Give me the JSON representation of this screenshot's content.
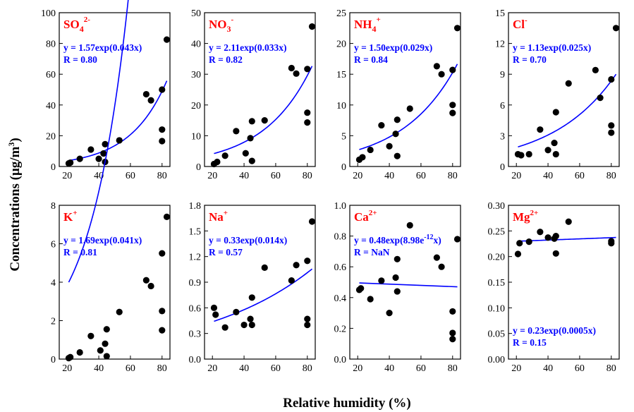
{
  "figure": {
    "xlabel": "Relative humidity (%)",
    "ylabel_base": "Concentrations (μg/m",
    "ylabel_sup": "3",
    "ylabel_end": ")"
  },
  "colors": {
    "ion": "#ff0000",
    "fit": "#0000ff",
    "points": "#000000"
  },
  "chart_data": [
    {
      "type": "scatter",
      "ion": {
        "base": "SO",
        "sub": "4",
        "sup": "2-"
      },
      "equation": "y = 1.57exp(0.043x)",
      "r_text": "R = 0.80",
      "fit": {
        "a": 1.57,
        "b": 0.043
      },
      "xlim": [
        15,
        85
      ],
      "xticks": [
        20,
        40,
        60,
        80
      ],
      "ylim": [
        0,
        100
      ],
      "yticks": [
        "0",
        "20",
        "40",
        "60",
        "80",
        "100"
      ],
      "points": [
        [
          21,
          2
        ],
        [
          22,
          2.5
        ],
        [
          28,
          5
        ],
        [
          35,
          11
        ],
        [
          40,
          5
        ],
        [
          43,
          8.5
        ],
        [
          44,
          3
        ],
        [
          44,
          14.5
        ],
        [
          53,
          17
        ],
        [
          70,
          47
        ],
        [
          73,
          43
        ],
        [
          80,
          50
        ],
        [
          80,
          24
        ],
        [
          80,
          16.5
        ],
        [
          83,
          82.5
        ]
      ]
    },
    {
      "type": "scatter",
      "ion": {
        "base": "NO",
        "sub": "3",
        "sup": "-"
      },
      "equation": "y = 2.11exp(0.033x)",
      "r_text": "R = 0.82",
      "fit": {
        "a": 2.11,
        "b": 0.033
      },
      "xlim": [
        15,
        85
      ],
      "xticks": [
        20,
        40,
        60,
        80
      ],
      "ylim": [
        0,
        50
      ],
      "yticks": [
        "0",
        "10",
        "20",
        "30",
        "40",
        "50"
      ],
      "points": [
        [
          21,
          0.8
        ],
        [
          23,
          1.5
        ],
        [
          28,
          3.5
        ],
        [
          35,
          11.5
        ],
        [
          41,
          4.3
        ],
        [
          44,
          9.2
        ],
        [
          45,
          1.8
        ],
        [
          45,
          14.7
        ],
        [
          53,
          15
        ],
        [
          70,
          32
        ],
        [
          73,
          30.2
        ],
        [
          80,
          31.7
        ],
        [
          80,
          17.5
        ],
        [
          80,
          14.3
        ],
        [
          83,
          45.5
        ]
      ]
    },
    {
      "type": "scatter",
      "ion": {
        "base": "NH",
        "sub": "4",
        "sup": "+"
      },
      "equation": "y = 1.50exp(0.029x)",
      "r_text": "R = 0.84",
      "fit": {
        "a": 1.5,
        "b": 0.029
      },
      "xlim": [
        15,
        85
      ],
      "xticks": [
        20,
        40,
        60,
        80
      ],
      "ylim": [
        0,
        25
      ],
      "yticks": [
        "0",
        "5",
        "10",
        "15",
        "20",
        "25"
      ],
      "points": [
        [
          21,
          1.1
        ],
        [
          23,
          1.5
        ],
        [
          28,
          2.7
        ],
        [
          35,
          6.7
        ],
        [
          40,
          3.3
        ],
        [
          44,
          5.3
        ],
        [
          45,
          1.7
        ],
        [
          45,
          7.6
        ],
        [
          53,
          9.4
        ],
        [
          70,
          16.3
        ],
        [
          73,
          15
        ],
        [
          80,
          15.7
        ],
        [
          80,
          10
        ],
        [
          80,
          8.7
        ],
        [
          83,
          22.5
        ]
      ]
    },
    {
      "type": "scatter",
      "ion": {
        "base": "Cl",
        "sub": "",
        "sup": "-"
      },
      "equation": "y = 1.13exp(0.025x)",
      "r_text": "R = 0.70",
      "fit": {
        "a": 1.13,
        "b": 0.025
      },
      "xlim": [
        15,
        85
      ],
      "xticks": [
        20,
        40,
        60,
        80
      ],
      "ylim": [
        0,
        15
      ],
      "yticks": [
        "0",
        "3",
        "6",
        "9",
        "12",
        "15"
      ],
      "points": [
        [
          21,
          1.2
        ],
        [
          23,
          1.1
        ],
        [
          28,
          1.2
        ],
        [
          35,
          3.6
        ],
        [
          40,
          1.6
        ],
        [
          44,
          2.3
        ],
        [
          45,
          1.2
        ],
        [
          45,
          5.3
        ],
        [
          53,
          8.1
        ],
        [
          70,
          9.4
        ],
        [
          73,
          6.7
        ],
        [
          80,
          8.5
        ],
        [
          80,
          4
        ],
        [
          80,
          3.3
        ],
        [
          83,
          13.5
        ]
      ]
    },
    {
      "type": "scatter",
      "ion": {
        "base": "K",
        "sub": "",
        "sup": "+"
      },
      "equation": "y = 1.69exp(0.041x)",
      "r_text": "R = 0.81",
      "fit": {
        "a": 1.69,
        "b": 0.041
      },
      "xlim": [
        15,
        85
      ],
      "xticks": [
        20,
        40,
        60,
        80
      ],
      "ylim": [
        0,
        8
      ],
      "yticks": [
        "0",
        "2",
        "4",
        "6",
        "8"
      ],
      "points": [
        [
          21,
          0.05
        ],
        [
          22,
          0.1
        ],
        [
          28,
          0.35
        ],
        [
          35,
          1.2
        ],
        [
          41,
          0.45
        ],
        [
          44,
          0.8
        ],
        [
          45,
          0.15
        ],
        [
          45,
          1.55
        ],
        [
          53,
          2.45
        ],
        [
          70,
          4.1
        ],
        [
          73,
          3.8
        ],
        [
          80,
          5.5
        ],
        [
          80,
          2.5
        ],
        [
          80,
          1.5
        ],
        [
          83,
          7.4
        ]
      ]
    },
    {
      "type": "scatter",
      "ion": {
        "base": "Na",
        "sub": "",
        "sup": "+"
      },
      "equation": "y = 0.33exp(0.014x)",
      "r_text": "R = 0.57",
      "fit": {
        "a": 0.33,
        "b": 0.014
      },
      "xlim": [
        15,
        85
      ],
      "xticks": [
        20,
        40,
        60,
        80
      ],
      "ylim": [
        0,
        1.8
      ],
      "yticks": [
        "0.0",
        "0.3",
        "0.6",
        "0.9",
        "1.2",
        "1.5",
        "1.8"
      ],
      "points": [
        [
          21,
          0.6
        ],
        [
          22,
          0.52
        ],
        [
          28,
          0.37
        ],
        [
          35,
          0.55
        ],
        [
          40,
          0.4
        ],
        [
          44,
          0.47
        ],
        [
          45,
          0.4
        ],
        [
          45,
          0.72
        ],
        [
          53,
          1.07
        ],
        [
          70,
          0.92
        ],
        [
          73,
          1.1
        ],
        [
          80,
          1.15
        ],
        [
          80,
          0.47
        ],
        [
          80,
          0.4
        ],
        [
          83,
          1.61
        ]
      ]
    },
    {
      "type": "scatter",
      "ion": {
        "base": "Ca",
        "sub": "",
        "sup": "2+"
      },
      "equation_base": "y = 0.48exp(8.98e",
      "equation_sup": "-12",
      "equation_end": "x)",
      "r_text": "R = NaN",
      "fit_line": [
        [
          21,
          0.495
        ],
        [
          83,
          0.47
        ]
      ],
      "xlim": [
        15,
        85
      ],
      "xticks": [
        20,
        40,
        60,
        80
      ],
      "ylim": [
        0,
        1.0
      ],
      "yticks": [
        "0.0",
        "0.2",
        "0.4",
        "0.6",
        "0.8",
        "1.0"
      ],
      "points": [
        [
          21,
          0.45
        ],
        [
          22,
          0.46
        ],
        [
          28,
          0.39
        ],
        [
          35,
          0.51
        ],
        [
          40,
          0.3
        ],
        [
          44,
          0.53
        ],
        [
          45,
          0.44
        ],
        [
          45,
          0.65
        ],
        [
          53,
          0.87
        ],
        [
          70,
          0.66
        ],
        [
          73,
          0.6
        ],
        [
          80,
          0.31
        ],
        [
          80,
          0.17
        ],
        [
          80,
          0.13
        ],
        [
          83,
          0.78
        ]
      ]
    },
    {
      "type": "scatter",
      "ion": {
        "base": "Mg",
        "sub": "",
        "sup": "2+"
      },
      "equation": "y = 0.23exp(0.0005x)",
      "r_text": "R = 0.15",
      "fit": {
        "a": 0.2276,
        "b": 0.0005
      },
      "xlim": [
        15,
        85
      ],
      "xticks": [
        20,
        40,
        60,
        80
      ],
      "ylim": [
        0,
        0.3
      ],
      "yticks": [
        "0.00",
        "0.05",
        "0.10",
        "0.15",
        "0.20",
        "0.25",
        "0.30"
      ],
      "points": [
        [
          21,
          0.205
        ],
        [
          22,
          0.226
        ],
        [
          28,
          0.229
        ],
        [
          35,
          0.248
        ],
        [
          40,
          0.237
        ],
        [
          44,
          0.235
        ],
        [
          45,
          0.24
        ],
        [
          45,
          0.206
        ],
        [
          53,
          0.268
        ],
        [
          80,
          0.23
        ],
        [
          80,
          0.226
        ]
      ]
    }
  ]
}
